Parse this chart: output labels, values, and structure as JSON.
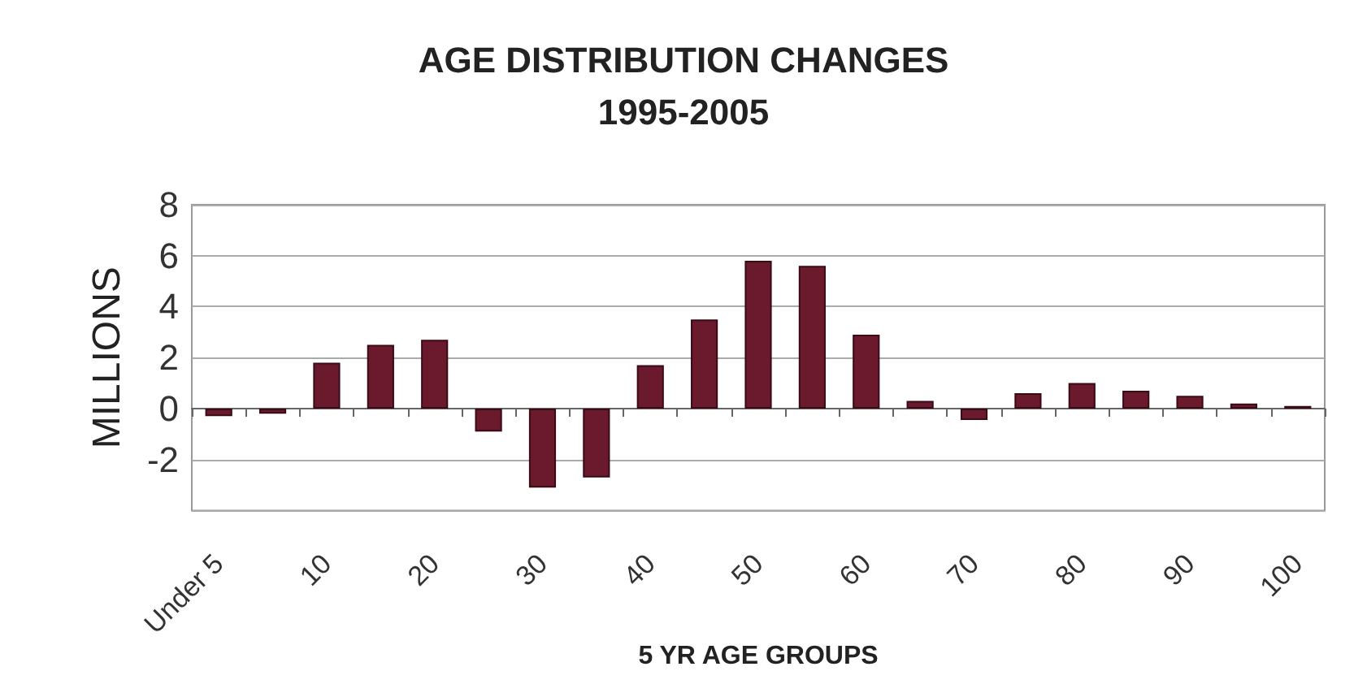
{
  "chart_data": {
    "type": "bar",
    "title": "AGE DISTRIBUTION CHANGES\n1995-2005",
    "xlabel": "5 YR AGE GROUPS",
    "ylabel": "MILLIONS",
    "categories": [
      "Under 5",
      null,
      "10",
      null,
      "20",
      null,
      "30",
      null,
      "40",
      null,
      "50",
      null,
      "60",
      null,
      "70",
      null,
      "80",
      null,
      "90",
      null,
      "100"
    ],
    "values": [
      -0.3,
      -0.2,
      1.8,
      2.5,
      2.7,
      -0.9,
      -3.1,
      -2.7,
      1.7,
      3.5,
      5.8,
      5.6,
      2.9,
      0.3,
      -0.45,
      0.6,
      1.0,
      0.7,
      0.5,
      0.2,
      0.1
    ],
    "color": "#6b1a2e",
    "ylim": [
      -4,
      8
    ],
    "yticks": [
      {
        "value": -4,
        "label": null
      },
      -2,
      0,
      2,
      4,
      6,
      8
    ],
    "grid": "y"
  }
}
